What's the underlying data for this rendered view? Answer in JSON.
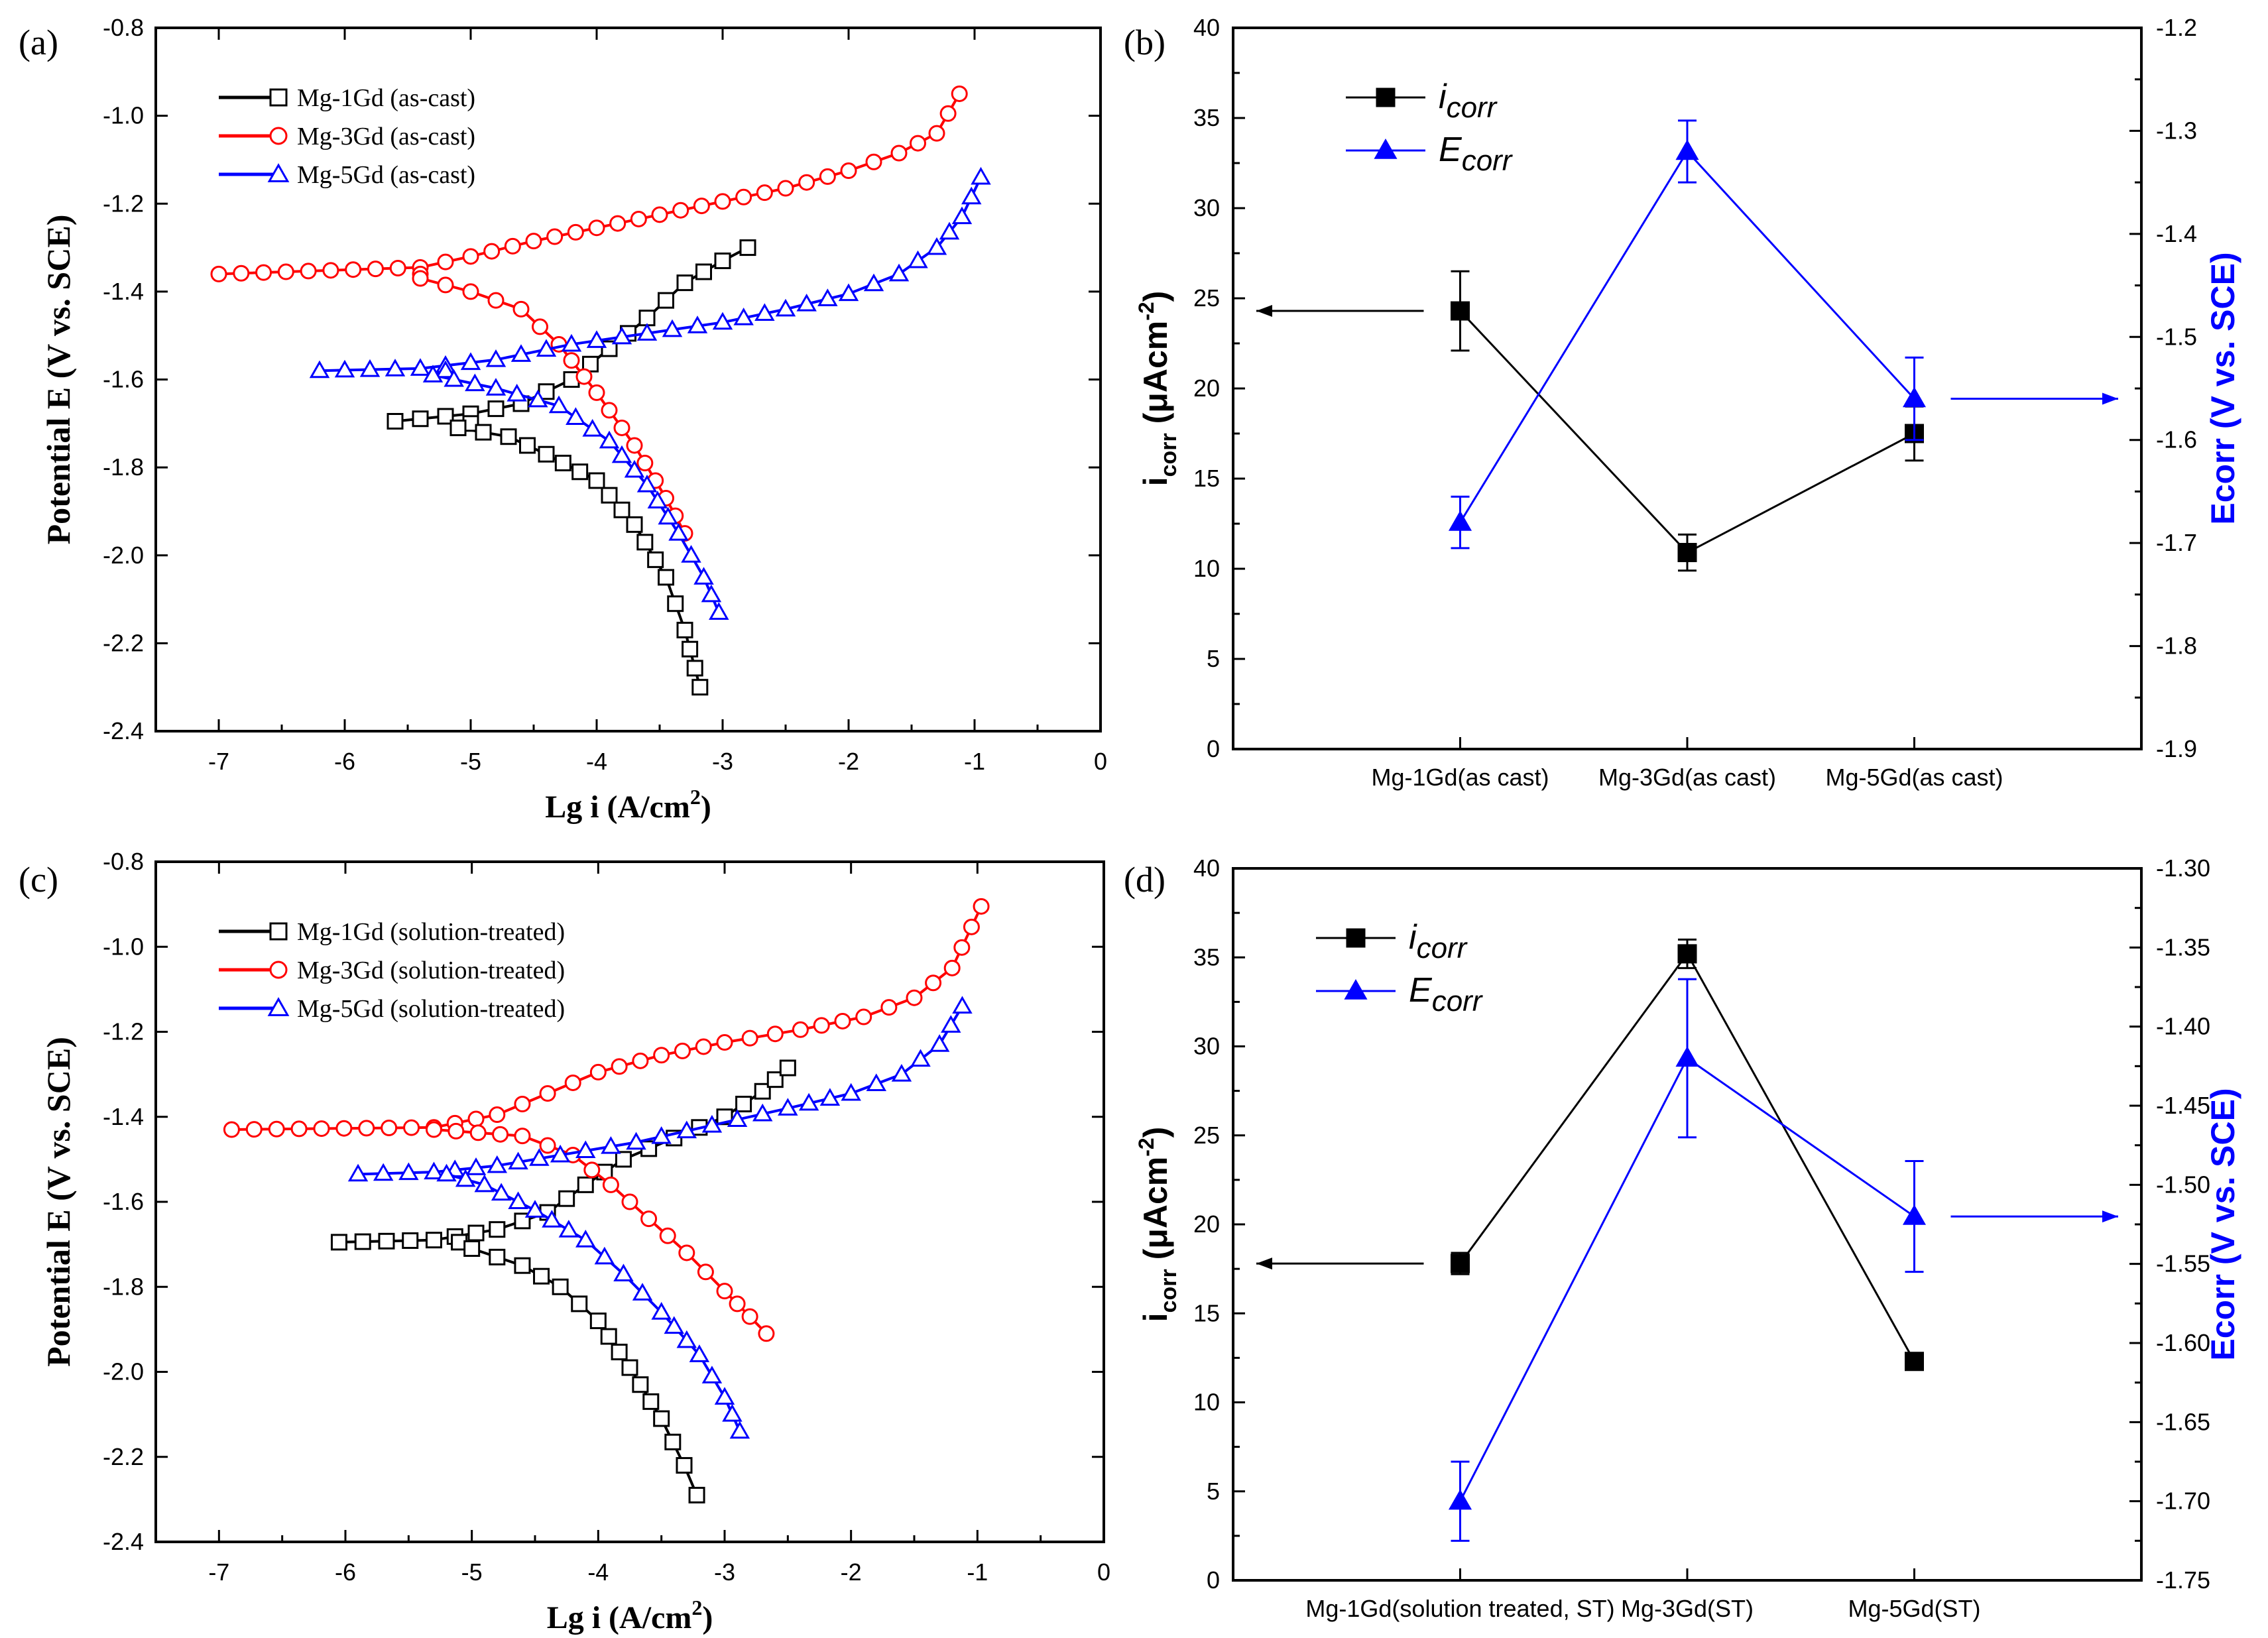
{
  "colors": {
    "black": "#000000",
    "red": "#ff0000",
    "blue": "#0000ff"
  },
  "chart_data": [
    {
      "panel": "(a)",
      "type": "line",
      "xlabel": "Lg i (A/cm",
      "xlabel_sup": "2",
      "xlabel_end": ")",
      "ylabel": "Potential E (V vs. SCE)",
      "xlim": [
        -7.5,
        0
      ],
      "ylim": [
        -2.4,
        -0.8
      ],
      "xticks": [
        -7,
        -6,
        -5,
        -4,
        -3,
        -2,
        -1,
        0
      ],
      "xtick_labels": [
        "-7",
        "-6",
        "-5",
        "-4",
        "-3",
        "-2",
        "-1",
        "0"
      ],
      "yticks": [
        -2.4,
        -2.2,
        -2.0,
        -1.8,
        -1.6,
        -1.4,
        -1.2,
        -1.0,
        -0.8
      ],
      "ytick_labels": [
        "-2.4",
        "-2.2",
        "-2.0",
        "-1.8",
        "-1.6",
        "-1.4",
        "-1.2",
        "-1.0",
        "-0.8"
      ],
      "legend_position": "top-left",
      "series": [
        {
          "name": "Mg-1Gd (as-cast)",
          "color": "#000000",
          "marker": "square",
          "ecorr": -1.7,
          "icorr_log": -5.0,
          "anodic": [
            [
              -5.6,
              -1.695
            ],
            [
              -5.0,
              -1.678
            ],
            [
              -4.6,
              -1.655
            ],
            [
              -4.2,
              -1.6
            ],
            [
              -3.9,
              -1.53
            ],
            [
              -3.6,
              -1.46
            ],
            [
              -3.3,
              -1.38
            ],
            [
              -3.0,
              -1.33
            ],
            [
              -2.8,
              -1.3
            ]
          ],
          "cathodic": [
            [
              -5.1,
              -1.71
            ],
            [
              -4.7,
              -1.73
            ],
            [
              -4.4,
              -1.77
            ],
            [
              -4.0,
              -1.83
            ],
            [
              -3.7,
              -1.93
            ],
            [
              -3.45,
              -2.05
            ],
            [
              -3.3,
              -2.17
            ],
            [
              -3.18,
              -2.3
            ]
          ]
        },
        {
          "name": "Mg-3Gd (as-cast)",
          "color": "#ff0000",
          "marker": "circle",
          "ecorr": -1.36,
          "icorr_log": -5.4,
          "anodic": [
            [
              -7.0,
              -1.36
            ],
            [
              -5.4,
              -1.345
            ],
            [
              -5.0,
              -1.32
            ],
            [
              -4.5,
              -1.285
            ],
            [
              -4.0,
              -1.255
            ],
            [
              -3.5,
              -1.225
            ],
            [
              -3.0,
              -1.195
            ],
            [
              -2.5,
              -1.165
            ],
            [
              -2.0,
              -1.125
            ],
            [
              -1.6,
              -1.085
            ],
            [
              -1.3,
              -1.04
            ],
            [
              -1.12,
              -0.95
            ]
          ],
          "cathodic": [
            [
              -5.4,
              -1.37
            ],
            [
              -5.0,
              -1.4
            ],
            [
              -4.6,
              -1.44
            ],
            [
              -4.3,
              -1.52
            ],
            [
              -4.0,
              -1.63
            ],
            [
              -3.7,
              -1.75
            ],
            [
              -3.45,
              -1.87
            ],
            [
              -3.3,
              -1.95
            ]
          ]
        },
        {
          "name": "Mg-5Gd (as-cast)",
          "color": "#0000ff",
          "marker": "triangle",
          "ecorr": -1.58,
          "icorr_log": -5.2,
          "anodic": [
            [
              -6.2,
              -1.58
            ],
            [
              -5.4,
              -1.575
            ],
            [
              -4.8,
              -1.555
            ],
            [
              -4.2,
              -1.52
            ],
            [
              -3.6,
              -1.495
            ],
            [
              -3.0,
              -1.47
            ],
            [
              -2.5,
              -1.44
            ],
            [
              -2.0,
              -1.405
            ],
            [
              -1.6,
              -1.36
            ],
            [
              -1.3,
              -1.3
            ],
            [
              -1.1,
              -1.23
            ],
            [
              -0.95,
              -1.14
            ]
          ],
          "cathodic": [
            [
              -5.3,
              -1.59
            ],
            [
              -4.8,
              -1.62
            ],
            [
              -4.3,
              -1.66
            ],
            [
              -3.9,
              -1.74
            ],
            [
              -3.6,
              -1.84
            ],
            [
              -3.35,
              -1.95
            ],
            [
              -3.15,
              -2.05
            ],
            [
              -3.03,
              -2.13
            ]
          ]
        }
      ]
    },
    {
      "panel": "(b)",
      "type": "line",
      "categories": [
        "Mg-1Gd(as cast)",
        "Mg-3Gd(as cast)",
        "Mg-5Gd(as cast)"
      ],
      "ylabel_left": "i",
      "ylabel_left_sub": "corr",
      "ylabel_left_unit": " (μAcm",
      "ylabel_left_sup": "-2",
      "ylabel_left_end": ")",
      "ylabel_right": "Ecorr (V vs. SCE)",
      "ylim_left": [
        0,
        40
      ],
      "ylim_right": [
        -1.9,
        -1.2
      ],
      "yticks_left": [
        0,
        5,
        10,
        15,
        20,
        25,
        30,
        35,
        40
      ],
      "ytick_labels_left": [
        "0",
        "5",
        "10",
        "15",
        "20",
        "25",
        "30",
        "35",
        "40"
      ],
      "yticks_right": [
        -1.9,
        -1.8,
        -1.7,
        -1.6,
        -1.5,
        -1.4,
        -1.3,
        -1.2
      ],
      "ytick_labels_right": [
        "-1.9",
        "-1.8",
        "-1.7",
        "-1.6",
        "-1.5",
        "-1.4",
        "-1.3",
        "-1.2"
      ],
      "legend_position": "top-left",
      "series": [
        {
          "name": "i",
          "name_sub": "corr",
          "axis": "left",
          "color": "#000000",
          "marker": "square",
          "values": [
            24.3,
            10.9,
            17.5
          ],
          "errors": [
            2.2,
            1.0,
            1.5
          ]
        },
        {
          "name": "E",
          "name_sub": "corr",
          "axis": "right",
          "color": "#0000ff",
          "marker": "triangle",
          "values": [
            -1.68,
            -1.32,
            -1.56
          ],
          "errors": [
            0.025,
            0.03,
            0.04
          ]
        }
      ],
      "arrows": [
        {
          "series": 0,
          "direction": "left"
        },
        {
          "series": 1,
          "direction": "right"
        }
      ]
    },
    {
      "panel": "(c)",
      "type": "line",
      "xlabel": "Lg i (A/cm",
      "xlabel_sup": "2",
      "xlabel_end": ")",
      "ylabel": "Potential E (V vs. SCE)",
      "xlim": [
        -7.5,
        0
      ],
      "ylim": [
        -2.4,
        -0.8
      ],
      "xticks": [
        -7,
        -6,
        -5,
        -4,
        -3,
        -2,
        -1,
        0
      ],
      "xtick_labels": [
        "-7",
        "-6",
        "-5",
        "-4",
        "-3",
        "-2",
        "-1",
        "0"
      ],
      "yticks": [
        -2.4,
        -2.2,
        -2.0,
        -1.8,
        -1.6,
        -1.4,
        -1.2,
        -1.0,
        -0.8
      ],
      "ytick_labels": [
        "-2.4",
        "-2.2",
        "-2.0",
        "-1.8",
        "-1.6",
        "-1.4",
        "-1.2",
        "-1.0",
        "-0.8"
      ],
      "legend_position": "top-left",
      "series": [
        {
          "name": "Mg-1Gd (solution-treated)",
          "color": "#000000",
          "marker": "square",
          "ecorr": -1.695,
          "icorr_log": -5.1,
          "anodic": [
            [
              -6.05,
              -1.695
            ],
            [
              -5.3,
              -1.69
            ],
            [
              -4.8,
              -1.665
            ],
            [
              -4.4,
              -1.625
            ],
            [
              -4.1,
              -1.56
            ],
            [
              -3.8,
              -1.5
            ],
            [
              -3.4,
              -1.45
            ],
            [
              -3.0,
              -1.4
            ],
            [
              -2.7,
              -1.34
            ],
            [
              -2.5,
              -1.285
            ]
          ],
          "cathodic": [
            [
              -5.0,
              -1.71
            ],
            [
              -4.6,
              -1.75
            ],
            [
              -4.3,
              -1.8
            ],
            [
              -4.0,
              -1.88
            ],
            [
              -3.75,
              -1.99
            ],
            [
              -3.5,
              -2.11
            ],
            [
              -3.32,
              -2.22
            ],
            [
              -3.22,
              -2.29
            ]
          ]
        },
        {
          "name": "Mg-3Gd (solution-treated)",
          "color": "#ff0000",
          "marker": "circle",
          "ecorr": -1.43,
          "icorr_log": -5.3,
          "anodic": [
            [
              -6.9,
              -1.43
            ],
            [
              -5.3,
              -1.425
            ],
            [
              -4.8,
              -1.395
            ],
            [
              -4.4,
              -1.345
            ],
            [
              -4.0,
              -1.295
            ],
            [
              -3.5,
              -1.255
            ],
            [
              -3.0,
              -1.225
            ],
            [
              -2.4,
              -1.195
            ],
            [
              -1.9,
              -1.165
            ],
            [
              -1.5,
              -1.12
            ],
            [
              -1.2,
              -1.05
            ],
            [
              -0.97,
              -0.905
            ]
          ],
          "cathodic": [
            [
              -4.6,
              -1.445
            ],
            [
              -4.2,
              -1.49
            ],
            [
              -3.9,
              -1.56
            ],
            [
              -3.6,
              -1.64
            ],
            [
              -3.3,
              -1.72
            ],
            [
              -3.0,
              -1.81
            ],
            [
              -2.8,
              -1.87
            ],
            [
              -2.67,
              -1.91
            ]
          ]
        },
        {
          "name": "Mg-5Gd (solution-treated)",
          "color": "#0000ff",
          "marker": "triangle",
          "ecorr": -1.535,
          "icorr_log": -5.2,
          "anodic": [
            [
              -5.9,
              -1.535
            ],
            [
              -5.3,
              -1.53
            ],
            [
              -4.8,
              -1.515
            ],
            [
              -4.3,
              -1.49
            ],
            [
              -3.7,
              -1.46
            ],
            [
              -3.1,
              -1.42
            ],
            [
              -2.5,
              -1.38
            ],
            [
              -2.0,
              -1.345
            ],
            [
              -1.6,
              -1.3
            ],
            [
              -1.3,
              -1.23
            ],
            [
              -1.12,
              -1.14
            ]
          ],
          "cathodic": [
            [
              -4.9,
              -1.56
            ],
            [
              -4.5,
              -1.62
            ],
            [
              -4.1,
              -1.69
            ],
            [
              -3.8,
              -1.77
            ],
            [
              -3.5,
              -1.86
            ],
            [
              -3.2,
              -1.96
            ],
            [
              -3.0,
              -2.06
            ],
            [
              -2.88,
              -2.14
            ]
          ]
        }
      ]
    },
    {
      "panel": "(d)",
      "type": "line",
      "categories": [
        "Mg-1Gd(solution treated, ST)",
        "Mg-3Gd(ST)",
        "Mg-5Gd(ST)"
      ],
      "ylabel_left": "i",
      "ylabel_left_sub": "corr",
      "ylabel_left_unit": " (μAcm",
      "ylabel_left_sup": "-2",
      "ylabel_left_end": ")",
      "ylabel_right": "Ecorr (V vs. SCE)",
      "ylim_left": [
        0,
        40
      ],
      "ylim_right": [
        -1.75,
        -1.3
      ],
      "yticks_left": [
        0,
        5,
        10,
        15,
        20,
        25,
        30,
        35,
        40
      ],
      "ytick_labels_left": [
        "0",
        "5",
        "10",
        "15",
        "20",
        "25",
        "30",
        "35",
        "40"
      ],
      "yticks_right": [
        -1.75,
        -1.7,
        -1.65,
        -1.6,
        -1.55,
        -1.5,
        -1.45,
        -1.4,
        -1.35,
        -1.3
      ],
      "ytick_labels_right": [
        "-1.75",
        "-1.70",
        "-1.65",
        "-1.60",
        "-1.55",
        "-1.50",
        "-1.45",
        "-1.40",
        "-1.35",
        "-1.30"
      ],
      "legend_position": "top-left",
      "series": [
        {
          "name": "i",
          "name_sub": "corr",
          "axis": "left",
          "color": "#000000",
          "marker": "square",
          "values": [
            17.8,
            35.2,
            12.3
          ],
          "errors": [
            0.6,
            0.8,
            0.0
          ]
        },
        {
          "name": "E",
          "name_sub": "corr",
          "axis": "right",
          "color": "#0000ff",
          "marker": "triangle",
          "values": [
            -1.7,
            -1.42,
            -1.52
          ],
          "errors": [
            0.025,
            0.05,
            0.035
          ]
        }
      ],
      "arrows": [
        {
          "series": 0,
          "direction": "left"
        },
        {
          "series": 1,
          "direction": "right"
        }
      ]
    }
  ]
}
